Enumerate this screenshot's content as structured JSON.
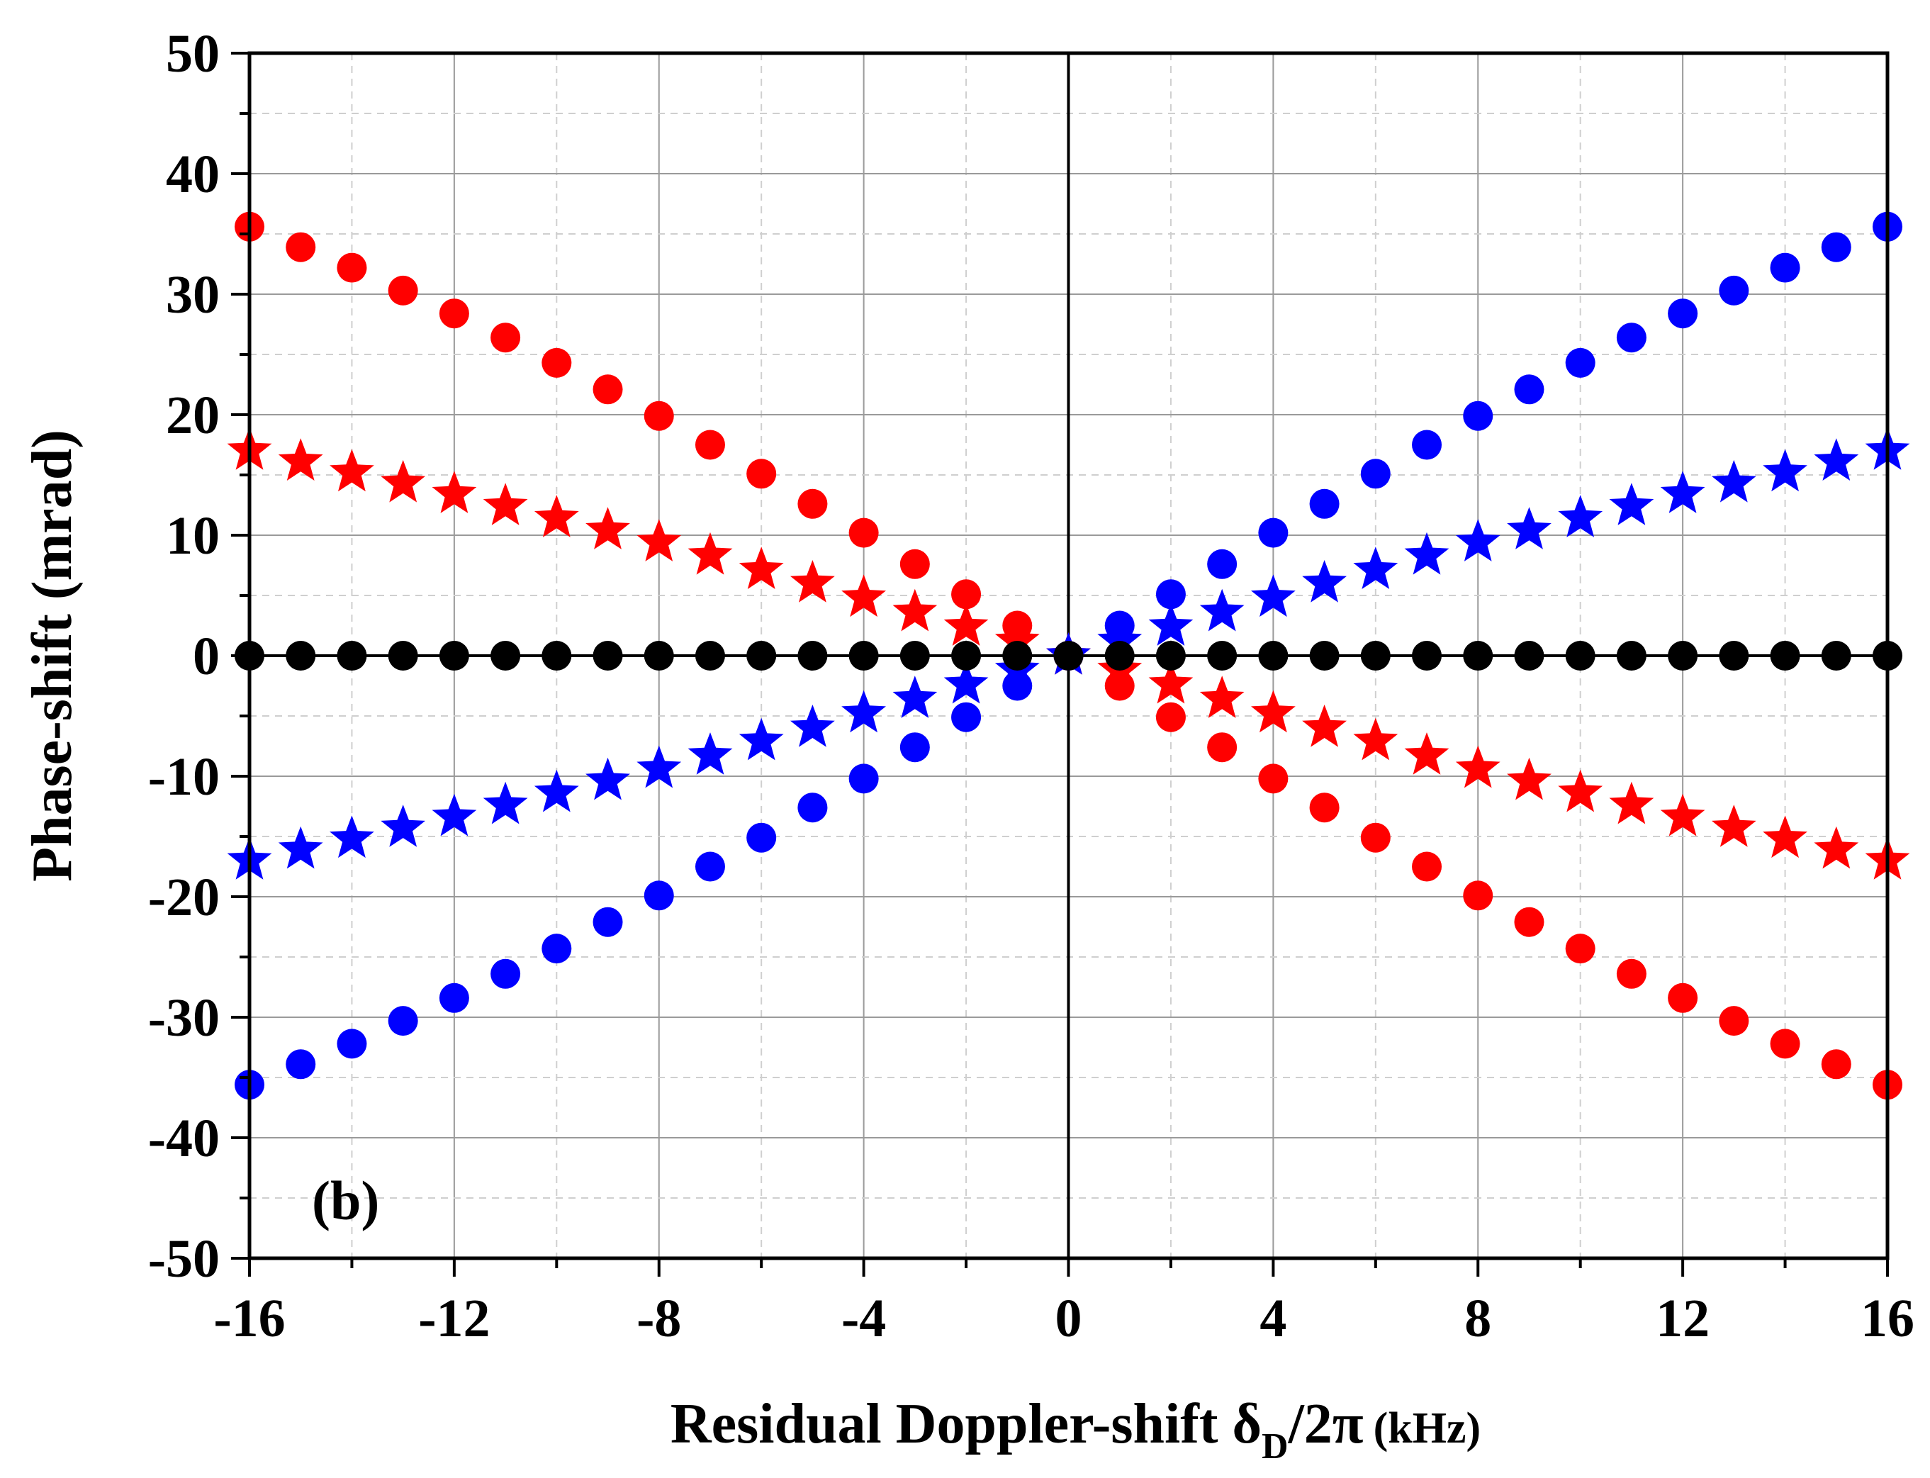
{
  "chart_data": {
    "type": "scatter",
    "title": "",
    "panel_label": "(b)",
    "xlabel": {
      "main": "Residual Doppler-shift δ",
      "subscript": "D",
      "rest": "/2π",
      "units": "(kHz)"
    },
    "ylabel": "Phase-shift (mrad)",
    "xlim": [
      -16,
      16
    ],
    "ylim": [
      -50,
      50
    ],
    "x_ticks": [
      -16,
      -12,
      -8,
      -4,
      0,
      4,
      8,
      12,
      16
    ],
    "x_tick_labels": [
      "-16",
      "-12",
      "-8",
      "-4",
      "0",
      "4",
      "8",
      "12",
      "16"
    ],
    "y_ticks": [
      -50,
      -40,
      -30,
      -20,
      -10,
      0,
      10,
      20,
      30,
      40,
      50
    ],
    "y_tick_labels": [
      "-50",
      "-40",
      "-30",
      "-20",
      "-10",
      "0",
      "10",
      "20",
      "30",
      "40",
      "50"
    ],
    "grid": true,
    "x": [
      -16,
      -15,
      -14,
      -13,
      -12,
      -11,
      -10,
      -9,
      -8,
      -7,
      -6,
      -5,
      -4,
      -3,
      -2,
      -1,
      0,
      1,
      2,
      3,
      4,
      5,
      6,
      7,
      8,
      9,
      10,
      11,
      12,
      13,
      14,
      15,
      16
    ],
    "series": [
      {
        "name": "red-circles",
        "color": "#ff0000",
        "marker": "circle",
        "values": [
          35.6,
          33.9,
          32.2,
          30.3,
          28.4,
          26.4,
          24.3,
          22.1,
          19.9,
          17.5,
          15.1,
          12.6,
          10.2,
          7.6,
          5.1,
          2.5,
          0,
          -2.5,
          -5.1,
          -7.6,
          -10.2,
          -12.6,
          -15.1,
          -17.5,
          -19.9,
          -22.1,
          -24.3,
          -26.4,
          -28.4,
          -30.3,
          -32.2,
          -33.9,
          -35.6
        ]
      },
      {
        "name": "blue-circles",
        "color": "#0000ff",
        "marker": "circle",
        "values": [
          -35.6,
          -33.9,
          -32.2,
          -30.3,
          -28.4,
          -26.4,
          -24.3,
          -22.1,
          -19.9,
          -17.5,
          -15.1,
          -12.6,
          -10.2,
          -7.6,
          -5.1,
          -2.5,
          0,
          2.5,
          5.1,
          7.6,
          10.2,
          12.6,
          15.1,
          17.5,
          19.9,
          22.1,
          24.3,
          26.4,
          28.4,
          30.3,
          32.2,
          33.9,
          35.6
        ]
      },
      {
        "name": "red-stars",
        "color": "#ff0000",
        "marker": "star",
        "values": [
          17.0,
          16.1,
          15.2,
          14.3,
          13.4,
          12.4,
          11.4,
          10.4,
          9.4,
          8.3,
          7.1,
          6.0,
          4.8,
          3.6,
          2.4,
          1.2,
          0,
          -1.2,
          -2.4,
          -3.6,
          -4.8,
          -6.0,
          -7.1,
          -8.3,
          -9.4,
          -10.4,
          -11.4,
          -12.4,
          -13.4,
          -14.3,
          -15.2,
          -16.1,
          -17.0
        ]
      },
      {
        "name": "blue-stars",
        "color": "#0000ff",
        "marker": "star",
        "values": [
          -17.0,
          -16.1,
          -15.2,
          -14.3,
          -13.4,
          -12.4,
          -11.4,
          -10.4,
          -9.4,
          -8.3,
          -7.1,
          -6.0,
          -4.8,
          -3.6,
          -2.4,
          -1.2,
          0,
          1.2,
          2.4,
          3.6,
          4.8,
          6.0,
          7.1,
          8.3,
          9.4,
          10.4,
          11.4,
          12.4,
          13.4,
          14.3,
          15.2,
          16.1,
          17.0
        ]
      },
      {
        "name": "black-circles",
        "color": "#000000",
        "marker": "circle",
        "values": [
          0,
          0,
          0,
          0,
          0,
          0,
          0,
          0,
          0,
          0,
          0,
          0,
          0,
          0,
          0,
          0,
          0,
          0,
          0,
          0,
          0,
          0,
          0,
          0,
          0,
          0,
          0,
          0,
          0,
          0,
          0,
          0,
          0
        ]
      }
    ]
  }
}
